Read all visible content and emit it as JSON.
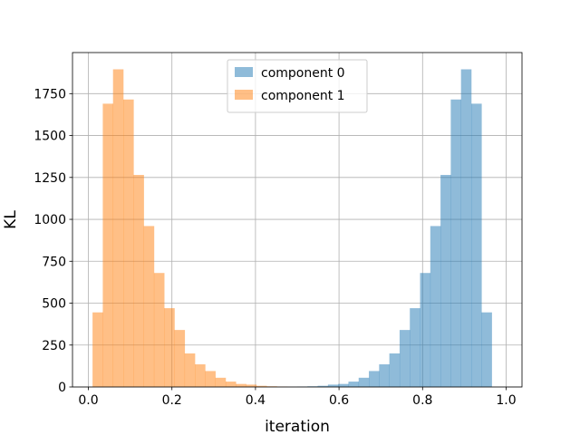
{
  "chart_data": {
    "type": "bar",
    "chart_kind": "histogram",
    "title": "",
    "xlabel": "iteration",
    "ylabel": "KL",
    "xlim": [
      -0.038,
      1.038
    ],
    "ylim": [
      0,
      1995
    ],
    "x_ticks": [
      0.0,
      0.2,
      0.4,
      0.6,
      0.8,
      1.0
    ],
    "x_tick_labels": [
      "0.0",
      "0.2",
      "0.4",
      "0.6",
      "0.8",
      "1.0"
    ],
    "y_ticks": [
      0,
      250,
      500,
      750,
      1000,
      1250,
      1500,
      1750
    ],
    "y_tick_labels": [
      "0",
      "250",
      "500",
      "750",
      "1000",
      "1250",
      "1500",
      "1750"
    ],
    "grid": true,
    "legend_position": "top-center",
    "bin_edges": [
      0.01,
      0.0345,
      0.059,
      0.0835,
      0.108,
      0.1325,
      0.157,
      0.1815,
      0.206,
      0.2305,
      0.255,
      0.2795,
      0.304,
      0.3285,
      0.353,
      0.3775,
      0.402,
      0.4265,
      0.451,
      0.4755,
      0.5,
      0.5245,
      0.549,
      0.5735,
      0.598,
      0.6225,
      0.647,
      0.6715,
      0.696,
      0.7205,
      0.745,
      0.7695,
      0.794,
      0.8185,
      0.843,
      0.8675,
      0.892,
      0.9165,
      0.941,
      0.9655,
      0.99
    ],
    "series": [
      {
        "name": "component 0",
        "color": "#1f77b4",
        "alpha": 0.5,
        "values": [
          0,
          0,
          0,
          0,
          0,
          0,
          0,
          0,
          0,
          0,
          0,
          0,
          0,
          0,
          0,
          0,
          0,
          0,
          0,
          0,
          2,
          4,
          7,
          14,
          18,
          32,
          55,
          95,
          135,
          200,
          340,
          470,
          680,
          960,
          1265,
          1715,
          1895,
          1690,
          445,
          0
        ]
      },
      {
        "name": "component 1",
        "color": "#ff7f0e",
        "alpha": 0.5,
        "values": [
          445,
          1690,
          1895,
          1715,
          1265,
          960,
          680,
          470,
          340,
          200,
          135,
          95,
          55,
          32,
          18,
          14,
          7,
          4,
          2,
          0,
          0,
          0,
          0,
          0,
          0,
          0,
          0,
          0,
          0,
          0,
          0,
          0,
          0,
          0,
          0,
          0,
          0,
          0,
          0,
          0
        ]
      }
    ]
  }
}
